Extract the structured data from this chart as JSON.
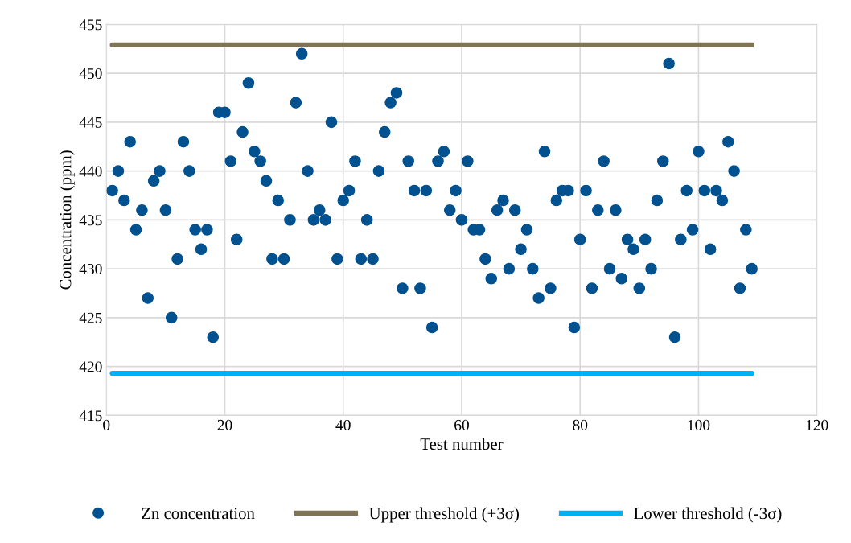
{
  "chart_data": {
    "type": "scatter",
    "xlabel": "Test number",
    "ylabel": "Concentration (ppm)",
    "xlim": [
      0,
      120
    ],
    "xticks": [
      0,
      20,
      40,
      60,
      80,
      100,
      120
    ],
    "ylim": [
      415,
      455
    ],
    "yticks": [
      415,
      420,
      425,
      430,
      435,
      440,
      445,
      450,
      455
    ],
    "grid": true,
    "legend": "bottom",
    "marker": "circle",
    "series": [
      {
        "name": "Zn concentration",
        "color": "#00518f",
        "x": [
          1,
          2,
          3,
          4,
          5,
          6,
          7,
          8,
          9,
          10,
          11,
          12,
          13,
          14,
          15,
          16,
          17,
          18,
          19,
          20,
          21,
          22,
          23,
          24,
          25,
          26,
          27,
          28,
          29,
          30,
          31,
          32,
          33,
          34,
          35,
          36,
          37,
          38,
          39,
          40,
          41,
          42,
          43,
          44,
          45,
          46,
          47,
          48,
          49,
          50,
          51,
          52,
          53,
          54,
          55,
          56,
          57,
          58,
          59,
          60,
          61,
          62,
          63,
          64,
          65,
          66,
          67,
          68,
          69,
          70,
          71,
          72,
          73,
          74,
          75,
          76,
          77,
          78,
          79,
          80,
          81,
          82,
          83,
          84,
          85,
          86,
          87,
          88,
          89,
          90,
          91,
          92,
          93,
          94,
          95,
          96,
          97,
          98,
          99,
          100,
          101,
          102,
          103,
          104,
          105,
          106,
          107,
          108,
          109
        ],
        "values": [
          438,
          440,
          437,
          443,
          434,
          436,
          427,
          439,
          440,
          436,
          425,
          431,
          443,
          440,
          434,
          432,
          434,
          423,
          446,
          446,
          441,
          433,
          444,
          449,
          442,
          441,
          439,
          431,
          437,
          431,
          435,
          447,
          452,
          440,
          435,
          436,
          435,
          445,
          431,
          437,
          438,
          441,
          431,
          435,
          431,
          440,
          444,
          447,
          448,
          428,
          441,
          438,
          428,
          438,
          424,
          441,
          442,
          436,
          438,
          435,
          441,
          434,
          434,
          431,
          429,
          436,
          437,
          430,
          436,
          432,
          434,
          430,
          427,
          442,
          428,
          437,
          438,
          438,
          424,
          433,
          438,
          428,
          436,
          441,
          430,
          436,
          429,
          433,
          432,
          428,
          433,
          430,
          437,
          441,
          451,
          423,
          433,
          438,
          434,
          442,
          438,
          432,
          438,
          437,
          443,
          440,
          428,
          434,
          430
        ]
      },
      {
        "name": "Upper threshold (+3σ)",
        "type": "line",
        "marker": "none",
        "color": "#7f7457",
        "x": [
          1,
          109
        ],
        "values": [
          452.9,
          452.9
        ]
      },
      {
        "name": "Lower threshold (-3σ)",
        "type": "line",
        "marker": "none",
        "color": "#00b0f0",
        "x": [
          1,
          109
        ],
        "values": [
          419.3,
          419.3
        ]
      }
    ]
  }
}
